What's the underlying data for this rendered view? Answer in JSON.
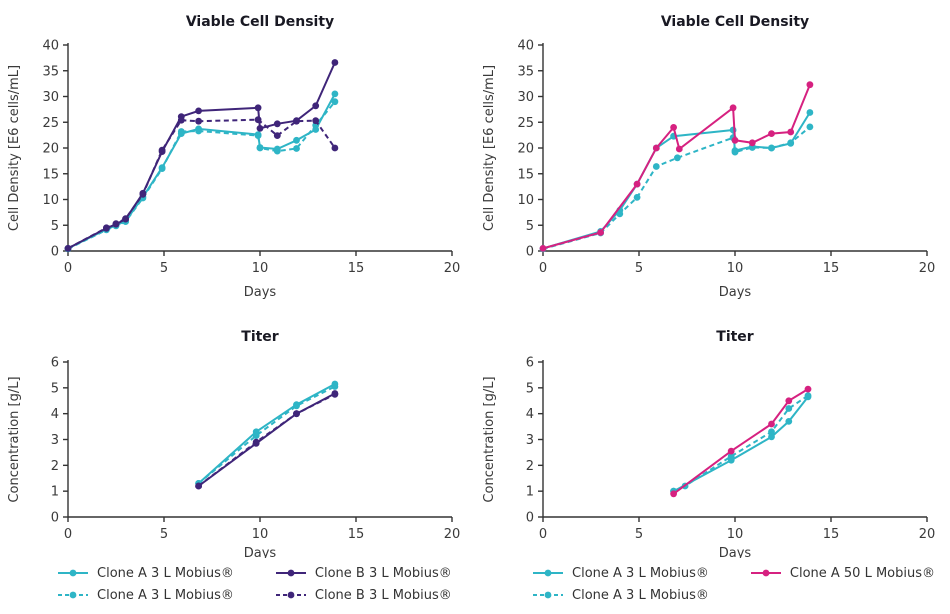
{
  "colors": {
    "teal": "#2EB5C6",
    "purple": "#3F2579",
    "magenta": "#D62180",
    "axis": "#333333",
    "tick_text": "#3a3a3a",
    "title_text": "#191923"
  },
  "chart_data": [
    {
      "id": "vcd-left",
      "type": "line",
      "title": "Viable Cell Density",
      "xlabel": "Days",
      "ylabel": "Cell Density [E6 cells/mL]",
      "xlim": [
        0,
        20
      ],
      "ylim": [
        0,
        40
      ],
      "xticks": [
        0,
        5,
        10,
        15,
        20
      ],
      "yticks": [
        0,
        5,
        10,
        15,
        20,
        25,
        30,
        35,
        40
      ],
      "grid": false,
      "series": [
        {
          "name": "Clone A 3 L Mobius®",
          "color": "teal",
          "dash": false,
          "x": [
            0,
            2,
            2.5,
            3,
            3.9,
            4.9,
            5.9,
            6.8,
            9.9,
            10,
            10.9,
            11.9,
            12.9,
            13.9
          ],
          "y": [
            0.5,
            4.2,
            5.0,
            5.8,
            10.5,
            16.2,
            22.8,
            23.7,
            22.6,
            20.1,
            19.8,
            21.5,
            23.6,
            30.5
          ]
        },
        {
          "name": "Clone A 3 L Mobius®",
          "color": "teal",
          "dash": true,
          "x": [
            0,
            2,
            2.5,
            3,
            3.9,
            4.9,
            5.9,
            6.8,
            9.9,
            10,
            10.9,
            11.9,
            12.9,
            13.9
          ],
          "y": [
            0.4,
            4.1,
            4.9,
            5.7,
            10.3,
            16.0,
            23.2,
            23.3,
            22.4,
            20.0,
            19.4,
            19.9,
            24.4,
            29.0
          ]
        },
        {
          "name": "Clone B 3 L Mobius®",
          "color": "purple",
          "dash": false,
          "x": [
            0,
            2,
            2.5,
            3,
            3.9,
            4.9,
            5.9,
            6.8,
            9.9,
            10,
            10.9,
            11.9,
            12.9,
            13.9
          ],
          "y": [
            0.5,
            4.4,
            5.2,
            6.2,
            11.2,
            19.3,
            26.1,
            27.2,
            27.8,
            23.8,
            24.7,
            25.3,
            28.2,
            36.6
          ]
        },
        {
          "name": "Clone B 3 L Mobius®",
          "color": "purple",
          "dash": true,
          "x": [
            0,
            2,
            2.5,
            3,
            3.9,
            4.9,
            5.9,
            6.8,
            9.9,
            10.9,
            11.9,
            12.9,
            13.9
          ],
          "y": [
            0.5,
            4.5,
            5.3,
            6.3,
            11.0,
            19.6,
            25.4,
            25.2,
            25.5,
            22.4,
            25.2,
            25.3,
            20.0
          ]
        }
      ]
    },
    {
      "id": "vcd-right",
      "type": "line",
      "title": "Viable Cell Density",
      "xlabel": "Days",
      "ylabel": "Cell Density [E6 cells/mL]",
      "xlim": [
        0,
        20
      ],
      "ylim": [
        0,
        40
      ],
      "xticks": [
        0,
        5,
        10,
        15,
        20
      ],
      "yticks": [
        0,
        5,
        10,
        15,
        20,
        25,
        30,
        35,
        40
      ],
      "grid": false,
      "series": [
        {
          "name": "Clone A 3 L Mobius®",
          "color": "teal",
          "dash": false,
          "x": [
            0,
            3,
            4,
            4.9,
            5.9,
            6.8,
            9.9,
            10,
            10.9,
            11.9,
            12.9,
            13.9
          ],
          "y": [
            0.5,
            3.8,
            7.9,
            13.0,
            20.0,
            22.3,
            23.5,
            19.5,
            20.3,
            20.0,
            20.9,
            26.9
          ]
        },
        {
          "name": "Clone A 3 L Mobius®",
          "color": "teal",
          "dash": true,
          "x": [
            0,
            3,
            4,
            4.9,
            5.9,
            7,
            9.9,
            10,
            10.9,
            11.9,
            12.9,
            13.9
          ],
          "y": [
            0.4,
            3.5,
            7.2,
            10.4,
            16.4,
            18.1,
            22.0,
            19.2,
            20.1,
            20.0,
            21.0,
            24.1
          ]
        },
        {
          "name": "Clone A 50 L Mobius®",
          "color": "magenta",
          "dash": false,
          "x": [
            0,
            3,
            4.9,
            5.9,
            6.8,
            7.1,
            9.9,
            10,
            10.9,
            11.9,
            12.9,
            13.9
          ],
          "y": [
            0.5,
            3.6,
            13.0,
            20.0,
            24.0,
            19.8,
            27.8,
            21.5,
            21.0,
            22.8,
            23.1,
            32.3
          ]
        }
      ]
    },
    {
      "id": "titer-left",
      "type": "line",
      "title": "Titer",
      "xlabel": "Days",
      "ylabel": "Concentration [g/L]",
      "xlim": [
        0,
        20
      ],
      "ylim": [
        0,
        6
      ],
      "xticks": [
        0,
        5,
        10,
        15,
        20
      ],
      "yticks": [
        0,
        1,
        2,
        3,
        4,
        5,
        6
      ],
      "grid": false,
      "series": [
        {
          "name": "Clone A 3 L Mobius®",
          "color": "teal",
          "dash": false,
          "x": [
            6.8,
            9.8,
            11.9,
            13.9
          ],
          "y": [
            1.3,
            3.3,
            4.35,
            5.15
          ]
        },
        {
          "name": "Clone A 3 L Mobius®",
          "color": "teal",
          "dash": true,
          "x": [
            6.8,
            9.8,
            11.9,
            13.9
          ],
          "y": [
            1.3,
            3.15,
            4.3,
            5.05
          ]
        },
        {
          "name": "Clone B 3 L Mobius®",
          "color": "purple",
          "dash": false,
          "x": [
            6.8,
            9.8,
            11.9,
            13.9
          ],
          "y": [
            1.2,
            2.85,
            4.0,
            4.78
          ]
        },
        {
          "name": "Clone B 3 L Mobius®",
          "color": "purple",
          "dash": true,
          "x": [
            6.8,
            9.8,
            11.9,
            13.9
          ],
          "y": [
            1.2,
            2.9,
            4.0,
            4.75
          ]
        }
      ]
    },
    {
      "id": "titer-right",
      "type": "line",
      "title": "Titer",
      "xlabel": "Days",
      "ylabel": "Concentration [g/L]",
      "xlim": [
        0,
        20
      ],
      "ylim": [
        0,
        6
      ],
      "xticks": [
        0,
        5,
        10,
        15,
        20
      ],
      "yticks": [
        0,
        1,
        2,
        3,
        4,
        5,
        6
      ],
      "grid": false,
      "series": [
        {
          "name": "Clone A 3 L Mobius®",
          "color": "teal",
          "dash": false,
          "x": [
            6.8,
            9.8,
            11.9,
            12.8,
            13.8
          ],
          "y": [
            1.0,
            2.2,
            3.1,
            3.7,
            4.65
          ]
        },
        {
          "name": "Clone A 3 L Mobius®",
          "color": "teal",
          "dash": true,
          "x": [
            6.8,
            7.4,
            9.8,
            11.9,
            12.8,
            13.8
          ],
          "y": [
            1.0,
            1.2,
            2.35,
            3.3,
            4.2,
            4.7
          ]
        },
        {
          "name": "Clone A 50 L Mobius®",
          "color": "magenta",
          "dash": false,
          "x": [
            6.8,
            9.8,
            11.9,
            12.8,
            13.8
          ],
          "y": [
            0.9,
            2.55,
            3.6,
            4.5,
            4.95
          ]
        }
      ]
    }
  ],
  "legends": {
    "left": [
      {
        "label": "Clone A 3 L Mobius®",
        "color": "teal",
        "dash": false,
        "col": 0
      },
      {
        "label": "Clone A 3 L Mobius®",
        "color": "teal",
        "dash": true,
        "col": 0
      },
      {
        "label": "Clone B 3 L Mobius®",
        "color": "purple",
        "dash": false,
        "col": 1
      },
      {
        "label": "Clone B 3 L Mobius®",
        "color": "purple",
        "dash": true,
        "col": 1
      }
    ],
    "right": [
      {
        "label": "Clone A 3 L Mobius®",
        "color": "teal",
        "dash": false,
        "col": 0
      },
      {
        "label": "Clone A 3 L Mobius®",
        "color": "teal",
        "dash": true,
        "col": 0
      },
      {
        "label": "Clone A 50 L Mobius®",
        "color": "magenta",
        "dash": false,
        "col": 1
      }
    ]
  }
}
